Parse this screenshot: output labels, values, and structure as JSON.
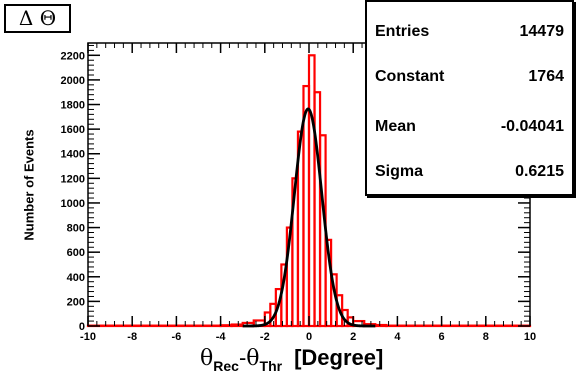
{
  "title": "Δ Θ",
  "stats": [
    {
      "label": "Entries",
      "value": "14479"
    },
    {
      "label": "Constant",
      "value": "1764"
    },
    {
      "label": "Mean",
      "value": "-0.04041"
    },
    {
      "label": "Sigma",
      "value": "0.6215"
    }
  ],
  "colors": {
    "histogram": "#ff0000",
    "fit": "#000000",
    "axis": "#000000"
  },
  "chart_data": {
    "type": "histogram",
    "title": "Δ Θ",
    "xlabel_parts": {
      "theta1": "θ",
      "sub1": "Rec",
      "dash": "-",
      "theta2": "θ",
      "sub2": "Thr",
      "unit": "[Degree]"
    },
    "ylabel": "Number of Events",
    "xlim": [
      -10,
      10
    ],
    "ylim": [
      0,
      2300
    ],
    "x_ticks": [
      "-10",
      "-8",
      "-6",
      "-4",
      "-2",
      "0",
      "2",
      "4",
      "6",
      "8",
      "10"
    ],
    "y_ticks": [
      "0",
      "200",
      "400",
      "600",
      "800",
      "1000",
      "1200",
      "1400",
      "1600",
      "1800",
      "2000",
      "2200"
    ],
    "bin_edges": [
      -10,
      -4,
      -3.5,
      -3,
      -2.5,
      -2,
      -1.75,
      -1.5,
      -1.25,
      -1,
      -0.75,
      -0.5,
      -0.25,
      0,
      0.25,
      0.5,
      0.75,
      1,
      1.25,
      1.5,
      1.75,
      2,
      2.5,
      3,
      3.5,
      10
    ],
    "bin_counts": [
      3,
      6,
      12,
      25,
      45,
      110,
      180,
      300,
      500,
      800,
      1200,
      1580,
      1950,
      2200,
      1900,
      1550,
      700,
      420,
      250,
      130,
      70,
      40,
      15,
      8,
      3
    ],
    "fit": {
      "function": "gaus",
      "constant": 1764,
      "mean": -0.04041,
      "sigma": 0.6215
    }
  }
}
